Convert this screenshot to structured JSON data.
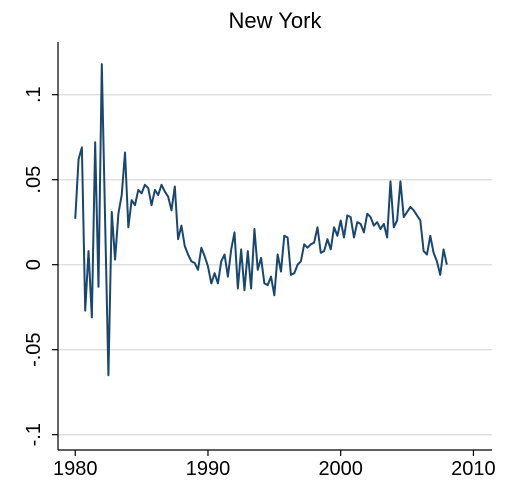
{
  "chart_data": {
    "type": "line",
    "title": "New York",
    "x": [
      1980,
      1980.25,
      1980.5,
      1980.75,
      1981,
      1981.25,
      1981.5,
      1981.75,
      1982,
      1982.25,
      1982.5,
      1982.75,
      1983,
      1983.25,
      1983.5,
      1983.75,
      1984,
      1984.25,
      1984.5,
      1984.75,
      1985,
      1985.25,
      1985.5,
      1985.75,
      1986,
      1986.25,
      1986.5,
      1986.75,
      1987,
      1987.25,
      1987.5,
      1987.75,
      1988,
      1988.25,
      1988.5,
      1988.75,
      1989,
      1989.25,
      1989.5,
      1989.75,
      1990,
      1990.25,
      1990.5,
      1990.75,
      1991,
      1991.25,
      1991.5,
      1991.75,
      1992,
      1992.25,
      1992.5,
      1992.75,
      1993,
      1993.25,
      1993.5,
      1993.75,
      1994,
      1994.25,
      1994.5,
      1994.75,
      1995,
      1995.25,
      1995.5,
      1995.75,
      1996,
      1996.25,
      1996.5,
      1996.75,
      1997,
      1997.25,
      1997.5,
      1997.75,
      1998,
      1998.25,
      1998.5,
      1998.75,
      1999,
      1999.25,
      1999.5,
      1999.75,
      2000,
      2000.25,
      2000.5,
      2000.75,
      2001,
      2001.25,
      2001.5,
      2001.75,
      2002,
      2002.25,
      2002.5,
      2002.75,
      2003,
      2003.25,
      2003.5,
      2003.75,
      2004,
      2004.25,
      2004.5,
      2004.75,
      2005,
      2005.25,
      2005.5,
      2005.75,
      2006,
      2006.25,
      2006.5,
      2006.75,
      2007,
      2007.25,
      2007.5,
      2007.75,
      2008
    ],
    "series": [
      {
        "name": "New York",
        "color": "#1a476f",
        "values": [
          0.027,
          0.062,
          0.069,
          -0.027,
          0.008,
          -0.031,
          0.072,
          -0.013,
          0.118,
          0.026,
          -0.065,
          0.031,
          0.003,
          0.03,
          0.041,
          0.066,
          0.022,
          0.038,
          0.035,
          0.044,
          0.042,
          0.047,
          0.045,
          0.035,
          0.044,
          0.041,
          0.047,
          0.043,
          0.04,
          0.032,
          0.046,
          0.015,
          0.023,
          0.011,
          0.006,
          0.002,
          0.001,
          -0.003,
          0.01,
          0.005,
          -0.001,
          -0.011,
          -0.005,
          -0.011,
          0.002,
          0.006,
          -0.007,
          0.009,
          0.019,
          -0.014,
          0.009,
          -0.015,
          0.008,
          -0.014,
          0.021,
          -0.003,
          0.004,
          -0.011,
          -0.012,
          -0.007,
          -0.018,
          0.006,
          -0.004,
          0.017,
          0.016,
          -0.006,
          -0.005,
          0.0,
          0.002,
          0.012,
          0.01,
          0.012,
          0.013,
          0.022,
          0.007,
          0.008,
          0.015,
          0.009,
          0.022,
          0.017,
          0.026,
          0.016,
          0.029,
          0.028,
          0.016,
          0.025,
          0.024,
          0.019,
          0.03,
          0.028,
          0.023,
          0.025,
          0.021,
          0.024,
          0.016,
          0.049,
          0.022,
          0.026,
          0.049,
          0.028,
          0.031,
          0.034,
          0.032,
          0.029,
          0.026,
          0.008,
          0.006,
          0.017,
          0.007,
          0.002,
          -0.006,
          0.009,
          0.0
        ]
      }
    ],
    "xlim": [
      1978.7,
      2011.4
    ],
    "xticks": [
      1980,
      1990,
      2000,
      2010
    ],
    "ylim": [
      -0.109,
      0.131
    ],
    "yticks": [
      {
        "value": -0.1,
        "label": "-.1"
      },
      {
        "value": -0.05,
        "label": "-.05"
      },
      {
        "value": 0,
        "label": "0"
      },
      {
        "value": 0.05,
        "label": ".05"
      },
      {
        "value": 0.1,
        "label": ".1"
      }
    ],
    "grid": true
  }
}
